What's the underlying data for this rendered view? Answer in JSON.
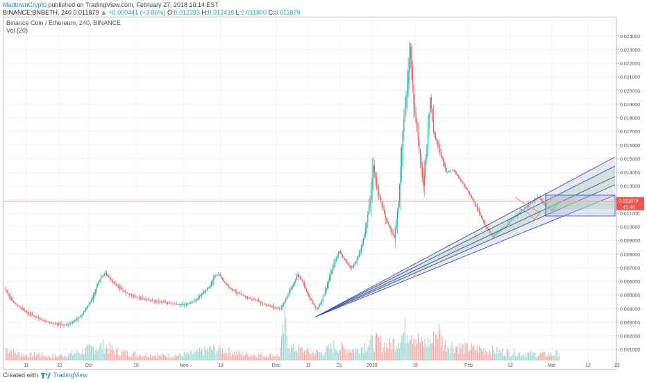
{
  "header": {
    "author": "MadtownCrypto",
    "published_text": "published on TradingView.com, February 27, 2018 10:14 EST",
    "symbol_line": "BINANCE:BNBETH, 240",
    "last": "0.011879",
    "change": "+0.000441 (+3.86%)",
    "open_label": "O:",
    "open": "0.012293",
    "high_label": "H:",
    "high": "0.012438",
    "low_label": "L:",
    "low": "0.011800",
    "close_label": "C:",
    "close": "0.011879"
  },
  "chart_title": "Binance Coin / Ethereum, 240, BINANCE",
  "vol_label": "Vol (20)",
  "footer": {
    "created_with": "Created with",
    "brand": "TradingView"
  },
  "colors": {
    "up": "#26a69a",
    "down": "#ef5350",
    "volume_up": "#9fd6cf",
    "volume_down": "#f5a9a6",
    "grid": "#eef1f5",
    "fan_line": "#3949ab",
    "fan_fill_blue": "#9fa8da",
    "fan_fill_green": "#a5d6a7",
    "price_line": "#ef9a9a",
    "price_badge": "#ef5350",
    "accent": "#1e88e5"
  },
  "chart_data": {
    "type": "candlestick",
    "title": "Binance Coin / Ethereum, 240, BINANCE",
    "x_tick_labels": [
      "11",
      "21",
      "Oct",
      "16",
      "Nov",
      "13",
      "Dec",
      "11",
      "21",
      "2018",
      "15",
      "Feb",
      "12",
      "Mar",
      "12",
      "22"
    ],
    "y_tick_labels": [
      "0.024000",
      "0.023000",
      "0.022000",
      "0.021000",
      "0.020000",
      "0.019000",
      "0.018000",
      "0.017000",
      "0.016000",
      "0.015000",
      "0.014000",
      "0.013000",
      "0.012000",
      "0.011000",
      "0.010000",
      "0.009000",
      "0.008000",
      "0.007000",
      "0.006000",
      "0.005000",
      "0.004000",
      "0.003000",
      "0.002000",
      "0.001000"
    ],
    "y_range": [
      0.0005,
      0.0245
    ],
    "current_price": "0.011879",
    "price_badge_sub": "45:46",
    "price_path": [
      [
        0,
        0.0055
      ],
      [
        6,
        0.0046
      ],
      [
        12,
        0.0042
      ],
      [
        20,
        0.0037
      ],
      [
        28,
        0.0034
      ],
      [
        36,
        0.0031
      ],
      [
        45,
        0.0029
      ],
      [
        55,
        0.0028
      ],
      [
        62,
        0.003
      ],
      [
        70,
        0.0035
      ],
      [
        76,
        0.0042
      ],
      [
        80,
        0.0048
      ],
      [
        84,
        0.0056
      ],
      [
        88,
        0.0063
      ],
      [
        92,
        0.0066
      ],
      [
        96,
        0.0062
      ],
      [
        102,
        0.0057
      ],
      [
        110,
        0.0052
      ],
      [
        118,
        0.0049
      ],
      [
        126,
        0.0047
      ],
      [
        134,
        0.0046
      ],
      [
        142,
        0.0045
      ],
      [
        150,
        0.0044
      ],
      [
        158,
        0.0043
      ],
      [
        166,
        0.0043
      ],
      [
        174,
        0.0046
      ],
      [
        182,
        0.0052
      ],
      [
        188,
        0.0057
      ],
      [
        192,
        0.0064
      ],
      [
        196,
        0.0065
      ],
      [
        200,
        0.006
      ],
      [
        206,
        0.0055
      ],
      [
        214,
        0.0051
      ],
      [
        222,
        0.0048
      ],
      [
        230,
        0.0046
      ],
      [
        238,
        0.0043
      ],
      [
        246,
        0.0041
      ],
      [
        252,
        0.004
      ],
      [
        256,
        0.0045
      ],
      [
        260,
        0.0052
      ],
      [
        264,
        0.0058
      ],
      [
        268,
        0.0065
      ],
      [
        272,
        0.006
      ],
      [
        276,
        0.0053
      ],
      [
        280,
        0.0046
      ],
      [
        284,
        0.0041
      ],
      [
        286,
        0.004
      ],
      [
        290,
        0.0046
      ],
      [
        294,
        0.0055
      ],
      [
        298,
        0.0065
      ],
      [
        302,
        0.0075
      ],
      [
        306,
        0.0082
      ],
      [
        310,
        0.0077
      ],
      [
        314,
        0.0072
      ],
      [
        318,
        0.007
      ],
      [
        322,
        0.0076
      ],
      [
        326,
        0.0085
      ],
      [
        330,
        0.0098
      ],
      [
        334,
        0.012
      ],
      [
        337,
        0.0145
      ],
      [
        340,
        0.013
      ],
      [
        344,
        0.0118
      ],
      [
        348,
        0.0106
      ],
      [
        352,
        0.01
      ],
      [
        356,
        0.0092
      ],
      [
        360,
        0.0118
      ],
      [
        364,
        0.017
      ],
      [
        368,
        0.0205
      ],
      [
        371,
        0.0232
      ],
      [
        374,
        0.019
      ],
      [
        377,
        0.017
      ],
      [
        380,
        0.015
      ],
      [
        383,
        0.013
      ],
      [
        386,
        0.016
      ],
      [
        389,
        0.0195
      ],
      [
        392,
        0.017
      ],
      [
        396,
        0.016
      ],
      [
        400,
        0.015
      ],
      [
        404,
        0.014
      ],
      [
        410,
        0.0142
      ],
      [
        416,
        0.0135
      ],
      [
        422,
        0.0128
      ],
      [
        428,
        0.012
      ],
      [
        434,
        0.011
      ],
      [
        440,
        0.01
      ],
      [
        446,
        0.0093
      ],
      [
        452,
        0.0097
      ],
      [
        458,
        0.01
      ],
      [
        464,
        0.0106
      ],
      [
        470,
        0.011
      ],
      [
        476,
        0.0114
      ],
      [
        482,
        0.0118
      ],
      [
        488,
        0.0122
      ],
      [
        494,
        0.0116
      ],
      [
        500,
        0.0112
      ],
      [
        506,
        0.0118
      ]
    ],
    "volume_path": [
      [
        0,
        0.3
      ],
      [
        10,
        0.18
      ],
      [
        20,
        0.12
      ],
      [
        30,
        0.15
      ],
      [
        40,
        0.1
      ],
      [
        50,
        0.12
      ],
      [
        60,
        0.16
      ],
      [
        70,
        0.22
      ],
      [
        80,
        0.3
      ],
      [
        90,
        0.35
      ],
      [
        100,
        0.22
      ],
      [
        110,
        0.18
      ],
      [
        120,
        0.15
      ],
      [
        130,
        0.14
      ],
      [
        140,
        0.12
      ],
      [
        150,
        0.12
      ],
      [
        160,
        0.13
      ],
      [
        170,
        0.16
      ],
      [
        180,
        0.22
      ],
      [
        190,
        0.28
      ],
      [
        200,
        0.24
      ],
      [
        210,
        0.18
      ],
      [
        220,
        0.15
      ],
      [
        230,
        0.14
      ],
      [
        240,
        0.13
      ],
      [
        250,
        0.12
      ],
      [
        255,
        0.9
      ],
      [
        260,
        0.3
      ],
      [
        270,
        0.26
      ],
      [
        280,
        0.18
      ],
      [
        290,
        0.2
      ],
      [
        300,
        0.35
      ],
      [
        310,
        0.28
      ],
      [
        320,
        0.25
      ],
      [
        330,
        0.4
      ],
      [
        340,
        0.45
      ],
      [
        350,
        0.35
      ],
      [
        360,
        0.55
      ],
      [
        365,
        0.7
      ],
      [
        370,
        0.8
      ],
      [
        375,
        0.55
      ],
      [
        380,
        0.4
      ],
      [
        390,
        0.45
      ],
      [
        395,
        0.75
      ],
      [
        400,
        0.4
      ],
      [
        410,
        0.35
      ],
      [
        420,
        0.3
      ],
      [
        430,
        0.28
      ],
      [
        440,
        0.25
      ],
      [
        450,
        0.22
      ],
      [
        460,
        0.2
      ],
      [
        470,
        0.18
      ],
      [
        480,
        0.16
      ],
      [
        490,
        0.15
      ],
      [
        500,
        0.14
      ],
      [
        506,
        0.2
      ]
    ]
  }
}
